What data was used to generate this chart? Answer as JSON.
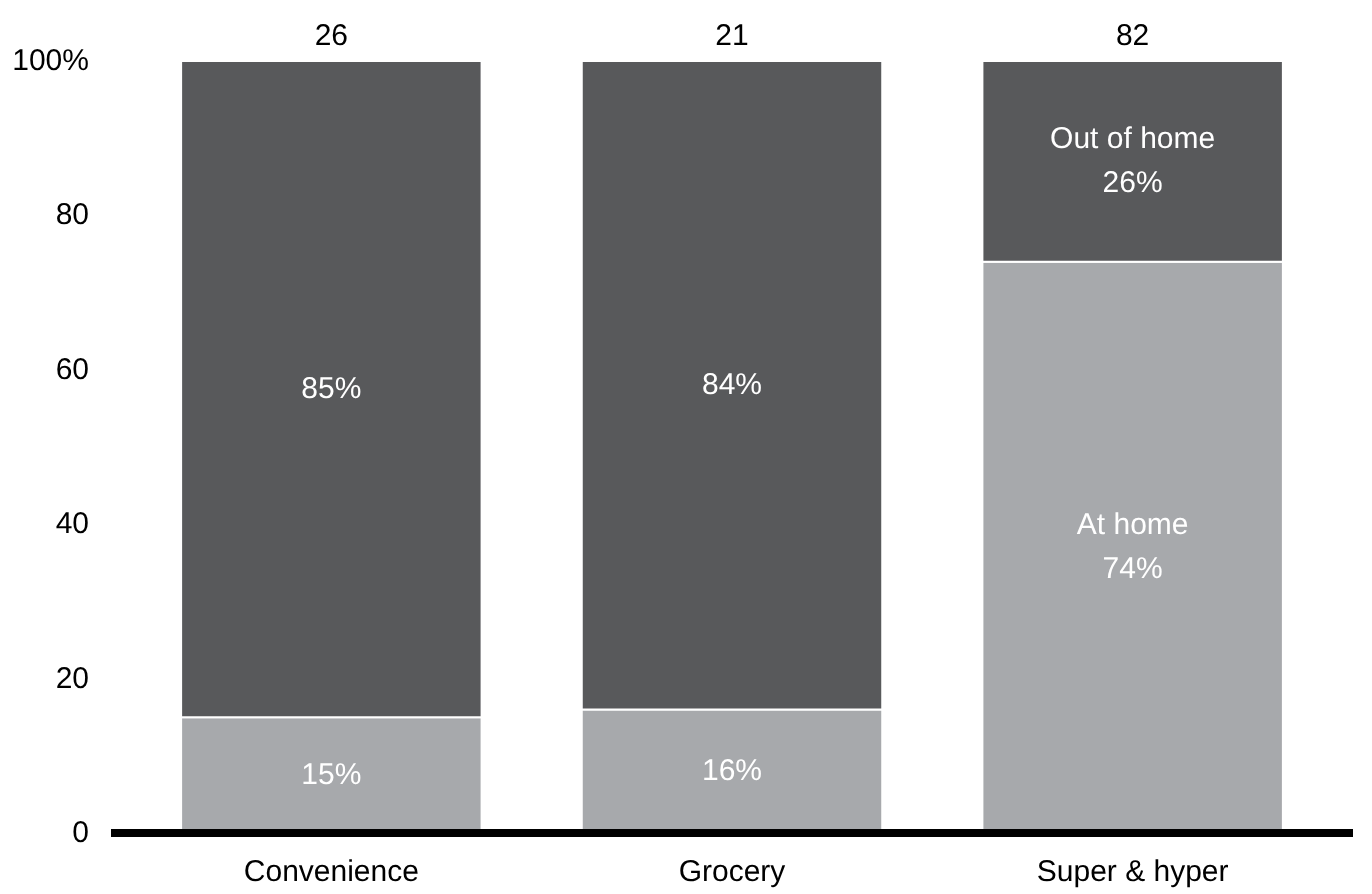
{
  "chart_data": {
    "type": "bar",
    "stacked": true,
    "categories": [
      "Convenience",
      "Grocery",
      "Super & hyper"
    ],
    "series": [
      {
        "color": "#a7a9ac",
        "values": [
          15,
          16,
          74
        ],
        "value_labels": [
          "15%",
          "16%",
          "At home\n74%"
        ]
      },
      {
        "color": "#58595b",
        "values": [
          85,
          84,
          26
        ],
        "value_labels": [
          "85%",
          "84%",
          "Out of home\n26%"
        ]
      }
    ],
    "annotations": [
      "26",
      "21",
      "82"
    ],
    "ylim": [
      0,
      100
    ],
    "yticks": [
      0,
      20,
      40,
      60,
      80,
      {
        "value": 100,
        "label": "100%"
      }
    ],
    "grid": false
  }
}
